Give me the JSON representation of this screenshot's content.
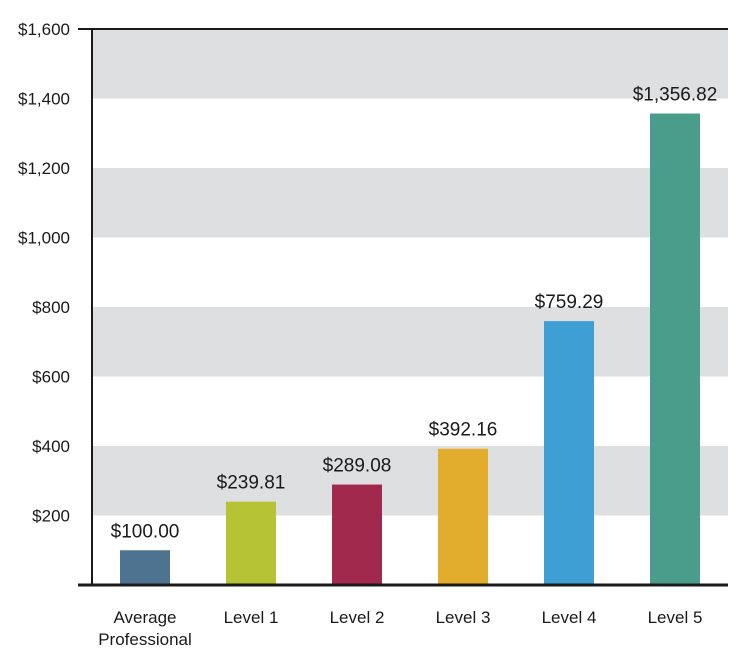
{
  "chart_data": {
    "type": "bar",
    "categories": [
      [
        "Average",
        "Professional"
      ],
      [
        "Level 1"
      ],
      [
        "Level 2"
      ],
      [
        "Level 3"
      ],
      [
        "Level 4"
      ],
      [
        "Level 5"
      ]
    ],
    "values": [
      100.0,
      239.81,
      289.08,
      392.16,
      759.29,
      1356.82
    ],
    "value_labels": [
      "$100.00",
      "$239.81",
      "$289.08",
      "$392.16",
      "$759.29",
      "$1,356.82"
    ],
    "colors": [
      "#4e7391",
      "#b5c335",
      "#a1294d",
      "#e2ad2c",
      "#3e9fd4",
      "#4a9c8b"
    ],
    "yticks": [
      200,
      400,
      600,
      800,
      1000,
      1200,
      1400,
      1600
    ],
    "ytick_labels": [
      "$200",
      "$400",
      "$600",
      "$800",
      "$1,000",
      "$1,200",
      "$1,400",
      "$1,600"
    ],
    "ylim": [
      0,
      1600
    ],
    "band_color": "#dedfe0",
    "title": "",
    "xlabel": "",
    "ylabel": ""
  }
}
